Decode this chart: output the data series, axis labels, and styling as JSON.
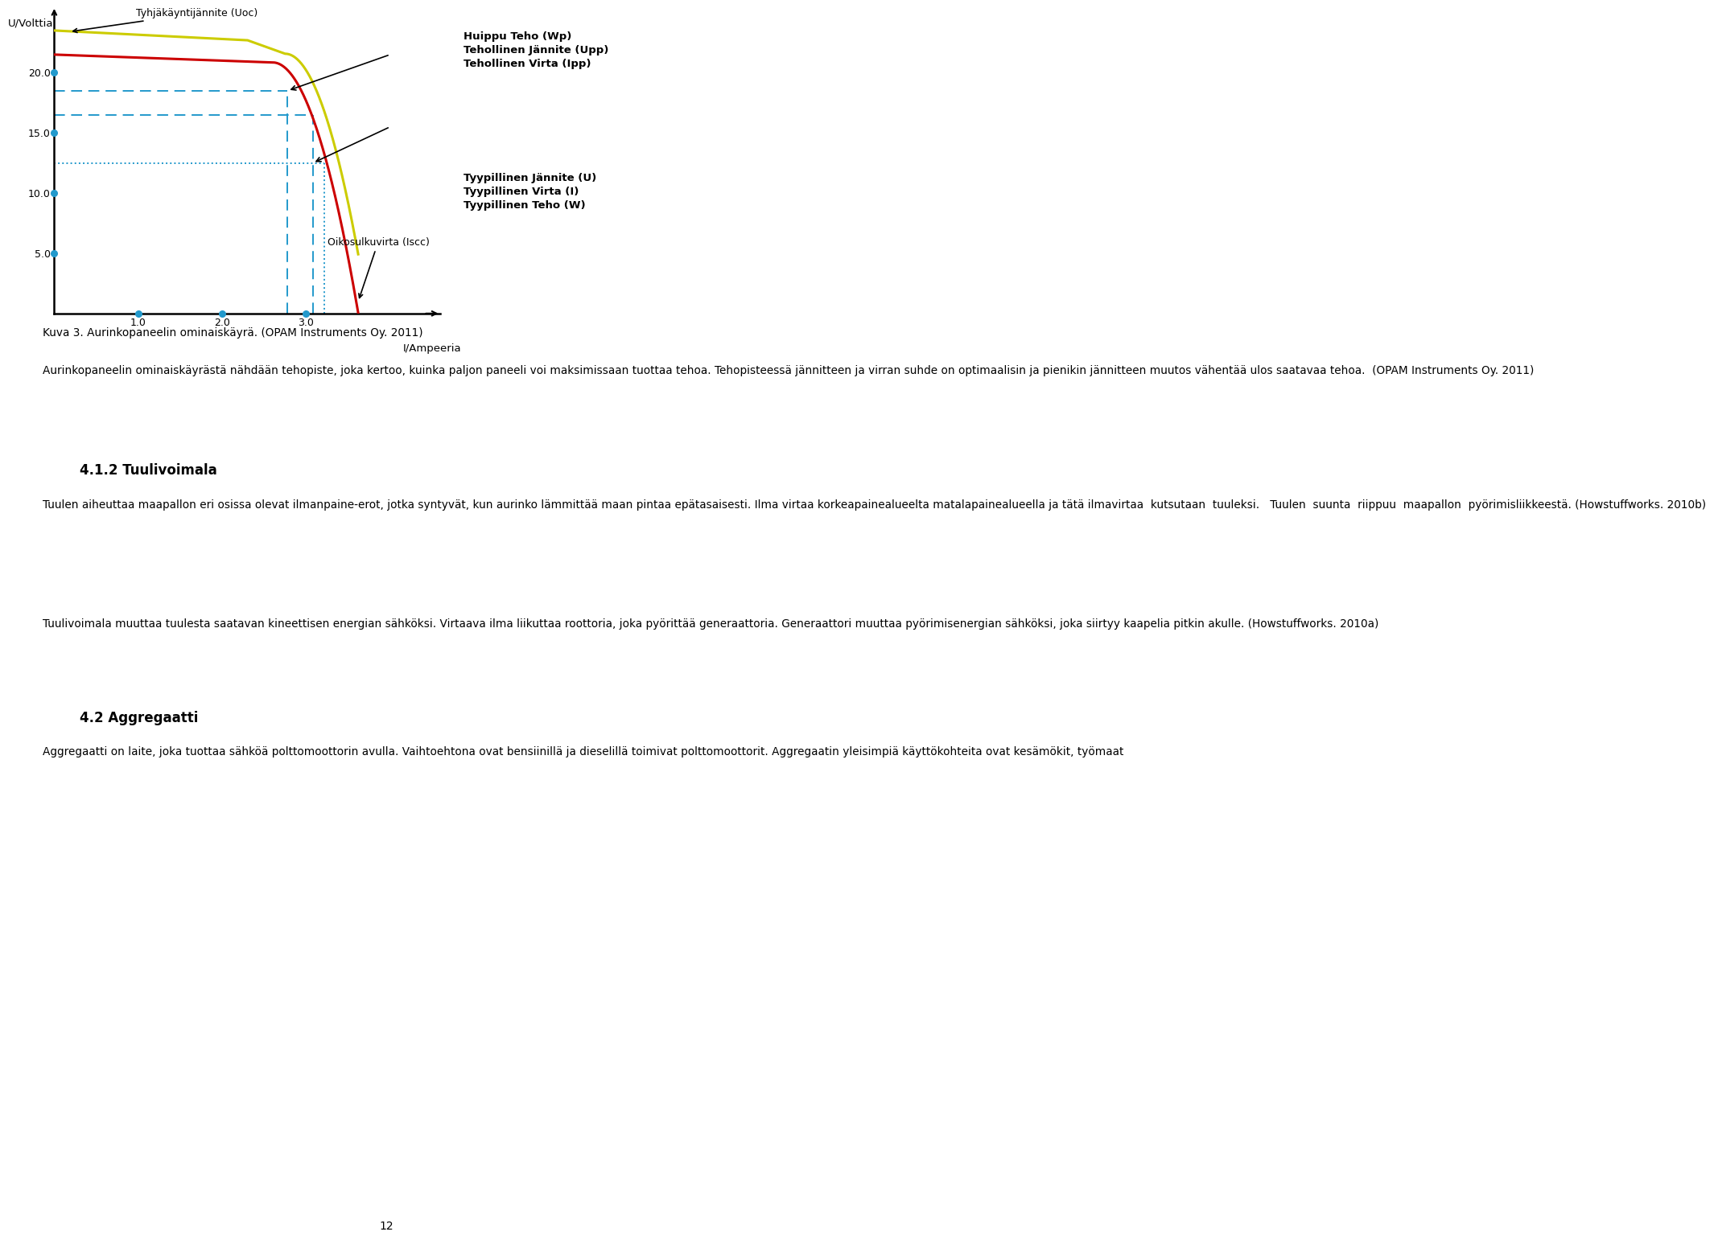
{
  "fig_width": 9.6,
  "fig_height": 15.93,
  "bg_color": "#ffffff",
  "curve_red_color": "#cc0000",
  "curve_yellow_color": "#cccc00",
  "dashed_blue_color": "#2299cc",
  "axis_color": "#000000",
  "ylim": [
    0,
    25
  ],
  "xlim": [
    0,
    4.6
  ],
  "yticks": [
    5.0,
    10.0,
    15.0,
    20.0
  ],
  "xticks": [
    1.0,
    2.0,
    3.0
  ],
  "ylabel": "U/Volttia",
  "xlabel": "I/Ampeeria",
  "annotation_uoc": "Tyhjäkäyntijännite (Uoc)",
  "annotation_huippu": "Huippu Teho (Wp)\nTehollinen Jännite (Upp)\nTehollinen Virta (Ipp)",
  "annotation_tyypillinen": "Tyypillinen Jännite (U)\nTyypillinen Virta (I)\nTyypillinen Teho (W)",
  "annotation_oiko": "Oikosulkuvirta (Iscc)",
  "caption": "Kuva 3. Aurinkopaneelin ominaiskäyrä. (OPAM Instruments Oy. 2011)",
  "para1": "Aurinkopaneelin ominaiskäyrästä nähdään tehopiste, joka kertoo, kuinka paljon paneeli voi maksimissaan tuottaa tehoa. Tehopisteessä jännitteen ja virran suhde on optimaalisin ja pienikin jännitteen muutos vähentää ulos saatavaa tehoa.  (OPAM Instruments Oy. 2011)",
  "heading1": "4.1.2 Tuulivoimala",
  "para2": "Tuulen aiheuttaa maapallon eri osissa olevat ilmanpaine-erot, jotka syntyvät, kun aurinko lämmittää maan pintaa epätasaisesti. Ilma virtaa korkeapainealueelta matalapainealueella ja tätä ilmavirtaa  kutsutaan  tuuleksi.   Tuulen  suunta  riippuu  maapallon  pyörimisliikkeestä. (Howstuffworks. 2010b)",
  "para3": "Tuulivoimala muuttaa tuulesta saatavan kineettisen energian sähköksi. Virtaava ilma liikuttaa roottoria, joka pyörittää generaattoria. Generaattori muuttaa pyörimisenergian sähköksi, joka siirtyy kaapelia pitkin akulle. (Howstuffworks. 2010a)",
  "heading2": "4.2 Aggregaatti",
  "para4": "Aggregaatti on laite, joka tuottaa sähköä polttomoottorin avulla. Vaihtoehtona ovat bensiinillä ja dieselillä toimivat polttomoottorit. Aggregaatin yleisimpiä käyttökohteita ovat kesämökit, työmaat",
  "page_number": "12"
}
